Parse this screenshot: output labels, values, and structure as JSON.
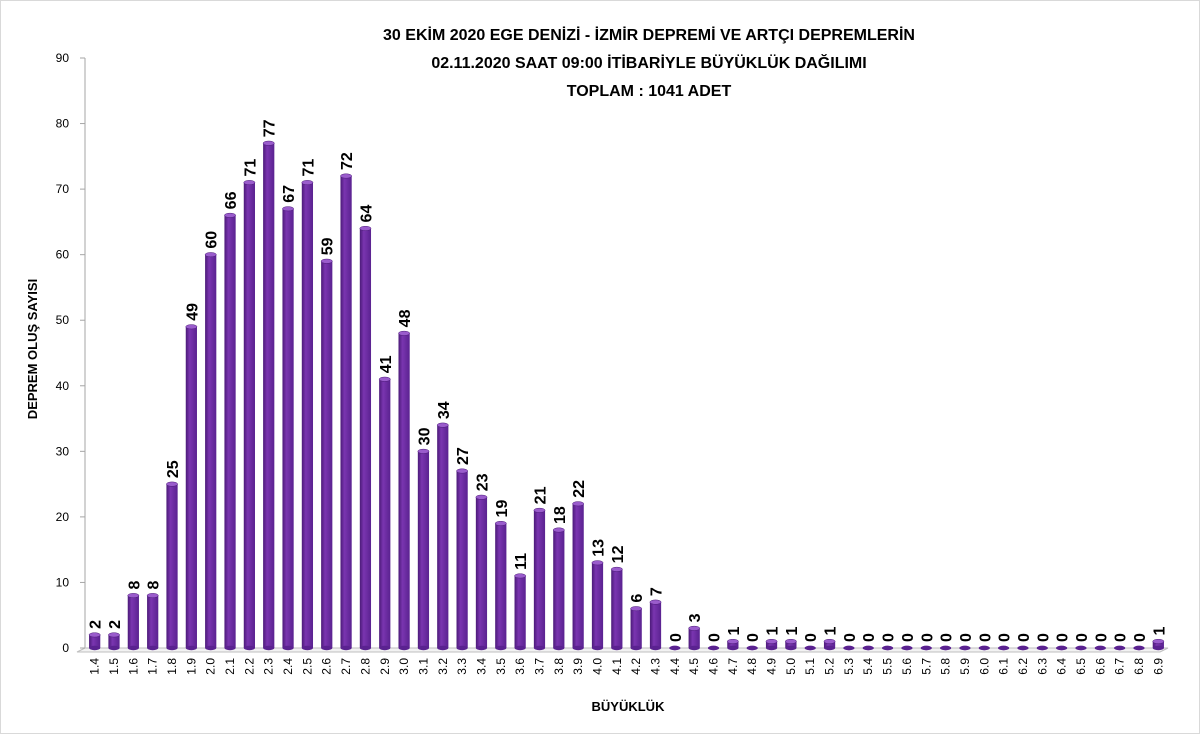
{
  "chart_data": {
    "type": "bar",
    "title": [
      "30 EKİM 2020  EGE DENİZİ - İZMİR DEPREMİ VE ARTÇI DEPREMLERİN",
      "02.11.2020  SAAT 09:00 İTİBARİYLE   BÜYÜKLÜK DAĞILIMI",
      "TOPLAM : 1041 ADET"
    ],
    "xlabel": "BÜYÜKLÜK",
    "ylabel": "DEPREM OLUŞ SAYISI",
    "ylim": [
      0,
      90
    ],
    "yticks": [
      0,
      10,
      20,
      30,
      40,
      50,
      60,
      70,
      80,
      90
    ],
    "grid": false,
    "bar_color": "#7030a0",
    "categories": [
      "1.4",
      "1.5",
      "1.6",
      "1.7",
      "1.8",
      "1.9",
      "2.0",
      "2.1",
      "2.2",
      "2.3",
      "2.4",
      "2.5",
      "2.6",
      "2.7",
      "2.8",
      "2.9",
      "3.0",
      "3.1",
      "3.2",
      "3.3",
      "3.4",
      "3.5",
      "3.6",
      "3.7",
      "3.8",
      "3.9",
      "4.0",
      "4.1",
      "4.2",
      "4.3",
      "4.4",
      "4.5",
      "4.6",
      "4.7",
      "4.8",
      "4.9",
      "5.0",
      "5.1",
      "5.2",
      "5.3",
      "5.4",
      "5.5",
      "5.6",
      "5.7",
      "5.8",
      "5.9",
      "6.0",
      "6.1",
      "6.2",
      "6.3",
      "6.4",
      "6.5",
      "6.6",
      "6.7",
      "6.8",
      "6.9"
    ],
    "values": [
      2,
      2,
      8,
      8,
      25,
      49,
      60,
      66,
      71,
      77,
      67,
      71,
      59,
      72,
      64,
      41,
      48,
      30,
      34,
      27,
      23,
      19,
      11,
      21,
      18,
      22,
      13,
      12,
      6,
      7,
      0,
      3,
      0,
      1,
      0,
      1,
      1,
      0,
      1,
      0,
      0,
      0,
      0,
      0,
      0,
      0,
      0,
      0,
      0,
      0,
      0,
      0,
      0,
      0,
      0,
      1
    ]
  }
}
